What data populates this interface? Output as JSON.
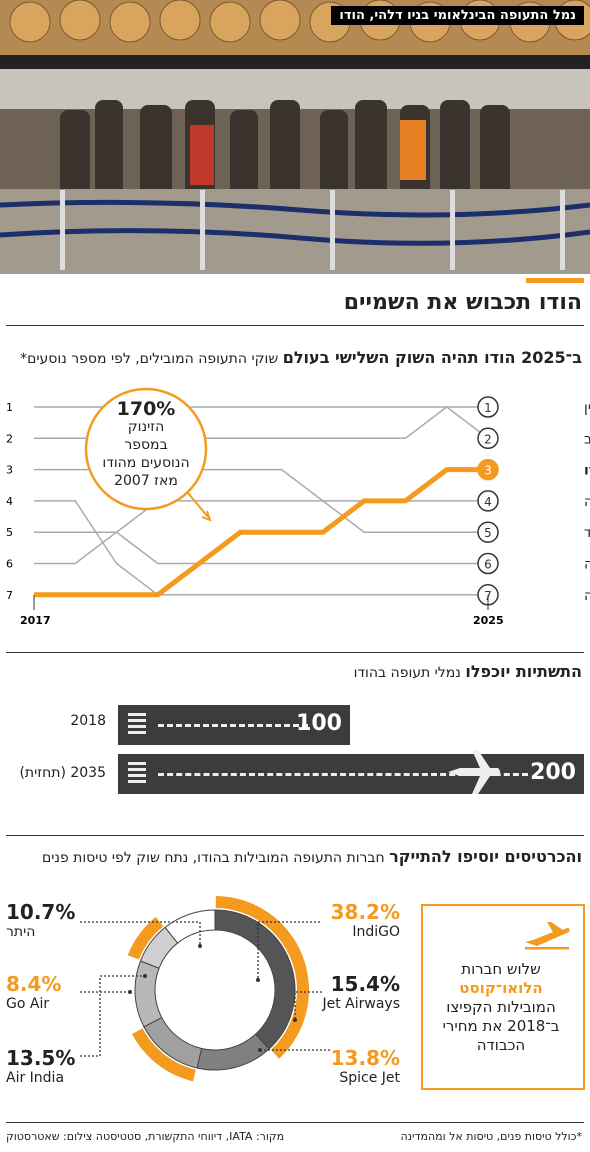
{
  "photo": {
    "caption": "נמל התעופה הבינלאומי בניו דלהי, הודו"
  },
  "title": "הודו תכבוש את השמיים",
  "section1": {
    "headline": "ב־2025 הודו תהיה השוק השלישי בעולם",
    "subtitle": "שוקי התעופה המובילים, לפי מספר נוסעים*"
  },
  "callout": {
    "value": "170%",
    "text_lines": [
      "הזינוק",
      "במספר",
      "הנוסעים מהודו",
      "מאז 2007"
    ]
  },
  "section2": {
    "headline": "התשתיות יוכפלו",
    "subtitle": "נמלי תעופה בהודו",
    "runways": [
      {
        "year_label": "2018",
        "value": "100"
      },
      {
        "year_label": "2035 (תחזית)",
        "value": "200"
      }
    ]
  },
  "section3": {
    "headline": "והכרטיסים יוסיפו להתייקר",
    "subtitle": "חברות התעופה המובילות בהודו, נתח שוק לפי טיסות פנים",
    "lcc_lines": [
      "שלוש חברות",
      "הלואו־קוסט",
      "המובילות הקפיצו",
      "ב־2018 את מחירי",
      "הכבודה"
    ]
  },
  "colors": {
    "accent": "#f39a1f",
    "dark": "#3c3c3c",
    "grey_line": "#aaaaaa"
  },
  "footer": {
    "note": "*כולל טיסות פנים, טיסות אל ומהמדינה",
    "source": "מקור: IATA, דיווחי התקשורת, סטטיסטה     צילום: שאטרסטוק"
  },
  "chart_data": [
    {
      "type": "line",
      "ylabel": "",
      "x_ticks": [
        "2017",
        "2025"
      ],
      "y_ticks": [
        "1",
        "2",
        "3",
        "4",
        "5",
        "6",
        "7"
      ],
      "ylim": [
        1,
        7
      ],
      "series": [
        {
          "name": "סין",
          "rank_2025": 1,
          "ranks": [
            1,
            1,
            1,
            1,
            1,
            1,
            1,
            1,
            1,
            1,
            1,
            1
          ],
          "highlight": false
        },
        {
          "name": "ארה\"ב",
          "rank_2025": 2,
          "ranks": [
            2,
            2,
            2,
            2,
            2,
            2,
            2,
            2,
            2,
            2,
            1,
            2
          ],
          "highlight": false
        },
        {
          "name": "הודו",
          "rank_2025": 3,
          "ranks": [
            7,
            7,
            7,
            7,
            6,
            5,
            5,
            5,
            4,
            4,
            3,
            3
          ],
          "highlight": true
        },
        {
          "name": "בריטניה",
          "rank_2025": 4,
          "ranks": [
            3,
            3,
            3,
            3,
            3,
            3,
            3,
            4,
            4,
            4,
            4,
            4
          ],
          "highlight": false
        },
        {
          "name": "ספרד",
          "rank_2025": 5,
          "ranks": [
            5,
            5,
            5,
            4,
            4,
            4,
            4,
            4,
            5,
            5,
            5,
            5
          ],
          "highlight": false
        },
        {
          "name": "אינדונזיה",
          "rank_2025": 6,
          "ranks": [
            6,
            6,
            5,
            6,
            6,
            6,
            6,
            6,
            6,
            6,
            6,
            6
          ],
          "highlight": false
        },
        {
          "name": "גרמניה",
          "rank_2025": 7,
          "ranks": [
            4,
            4,
            6,
            7,
            7,
            7,
            7,
            7,
            7,
            7,
            7,
            7
          ],
          "highlight": false
        }
      ]
    },
    {
      "type": "pie",
      "slices": [
        {
          "name": "IndiGO",
          "value": 38.2,
          "label": "38.2%",
          "color": "#555555",
          "highlight": true
        },
        {
          "name": "Jet Airways",
          "value": 15.4,
          "label": "15.4%",
          "color": "#808080",
          "highlight": false
        },
        {
          "name": "Spice Jet",
          "value": 13.8,
          "label": "13.8%",
          "color": "#a0a0a0",
          "highlight": true
        },
        {
          "name": "Air India",
          "value": 13.5,
          "label": "13.5%",
          "color": "#b8b8b8",
          "highlight": false
        },
        {
          "name": "Go Air",
          "value": 8.4,
          "label": "8.4%",
          "color": "#cfcfcf",
          "highlight": true
        },
        {
          "name": "היתר",
          "value": 10.7,
          "label": "10.7%",
          "color": "#ffffff",
          "highlight": false
        }
      ]
    }
  ]
}
